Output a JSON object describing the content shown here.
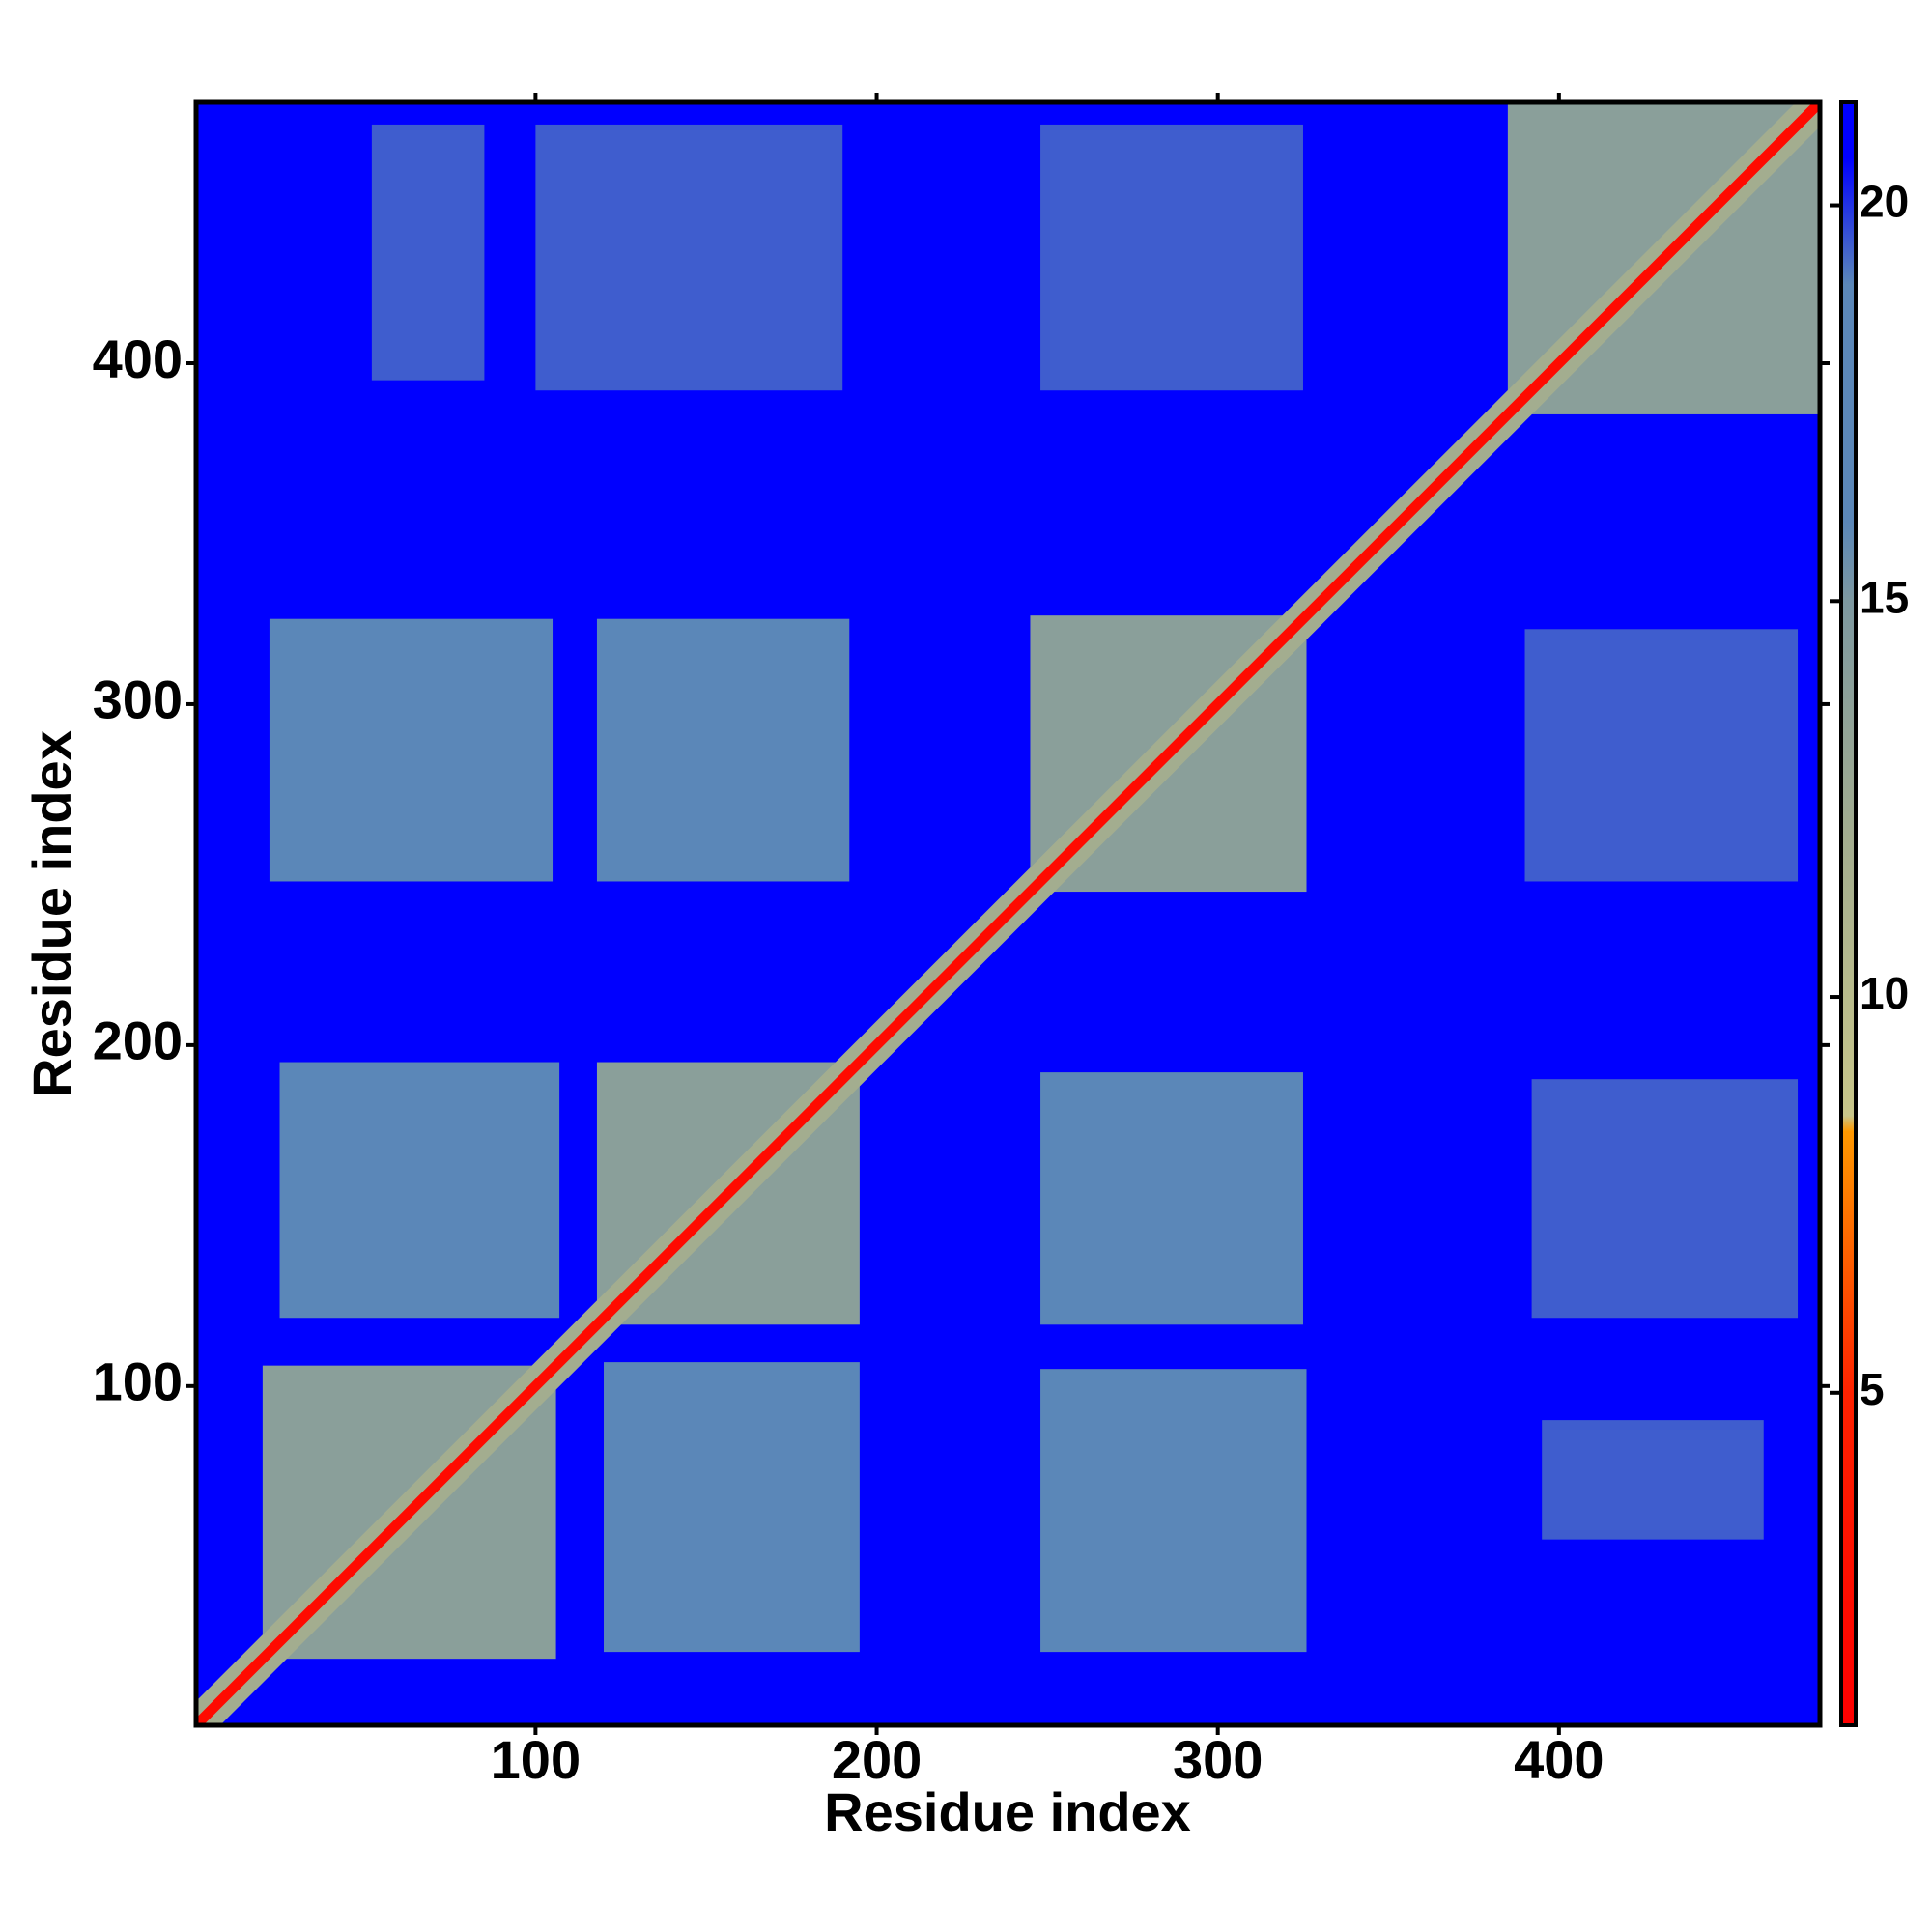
{
  "chart_data": {
    "type": "heatmap",
    "xlabel": "Residue index",
    "ylabel": "Residue index",
    "xlim": [
      0.5,
      476.5
    ],
    "ylim": [
      0.5,
      476.5
    ],
    "xticks": [
      100,
      200,
      300,
      400
    ],
    "yticks": [
      100,
      200,
      300,
      400
    ],
    "background": 21,
    "regions": [
      {
        "x": [
          25,
          107
        ],
        "y": [
          120,
          195
        ],
        "value": 18
      },
      {
        "x": [
          120,
          195
        ],
        "y": [
          22,
          107
        ],
        "value": 18
      },
      {
        "x": [
          22,
          105
        ],
        "y": [
          248,
          325
        ],
        "value": 18
      },
      {
        "x": [
          248,
          326
        ],
        "y": [
          22,
          105
        ],
        "value": 18
      },
      {
        "x": [
          118,
          192
        ],
        "y": [
          248,
          325
        ],
        "value": 18
      },
      {
        "x": [
          248,
          325
        ],
        "y": [
          118,
          192
        ],
        "value": 18
      },
      {
        "x": [
          52,
          85
        ],
        "y": [
          395,
          470
        ],
        "value": 19.5
      },
      {
        "x": [
          395,
          460
        ],
        "y": [
          55,
          90
        ],
        "value": 19.5
      },
      {
        "x": [
          100,
          190
        ],
        "y": [
          392,
          470
        ],
        "value": 19.5
      },
      {
        "x": [
          392,
          470
        ],
        "y": [
          120,
          190
        ],
        "value": 19.5
      },
      {
        "x": [
          248,
          325
        ],
        "y": [
          392,
          470
        ],
        "value": 19.5
      },
      {
        "x": [
          390,
          470
        ],
        "y": [
          248,
          322
        ],
        "value": 19.5
      },
      {
        "x": [
          20,
          106
        ],
        "y": [
          20,
          106
        ],
        "value": 14
      },
      {
        "x": [
          118,
          195
        ],
        "y": [
          118,
          195
        ],
        "value": 14
      },
      {
        "x": [
          245,
          326
        ],
        "y": [
          245,
          326
        ],
        "value": 14
      },
      {
        "x": [
          385,
          476.5
        ],
        "y": [
          385,
          476.5
        ],
        "value": 14
      }
    ],
    "diagonal_bands": [
      {
        "width": 10,
        "value": 12
      },
      {
        "width": 3,
        "value": 2
      }
    ],
    "colorscale": [
      [
        0.8,
        "#ff0000"
      ],
      [
        5,
        "#ff2200"
      ],
      [
        8.3,
        "#ff9900"
      ],
      [
        8.5,
        "#c8c68a"
      ],
      [
        12,
        "#a3ad8f"
      ],
      [
        15,
        "#7d98a0"
      ],
      [
        16,
        "#5b87b8"
      ],
      [
        19,
        "#5b87b8"
      ],
      [
        20.6,
        "#0000ff"
      ],
      [
        21.3,
        "#0000ff"
      ]
    ],
    "clim": [
      0.8,
      21.3
    ],
    "cticks": [
      5,
      10,
      15,
      20
    ]
  }
}
